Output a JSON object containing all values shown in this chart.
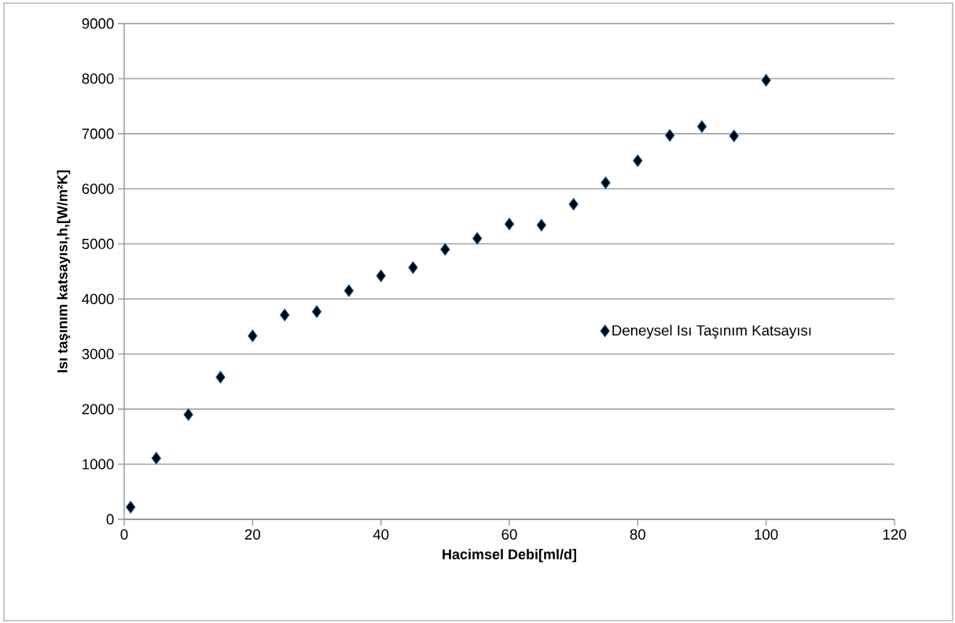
{
  "chart_data": {
    "type": "scatter",
    "xlabel": "Hacimsel Debi[ml/d]",
    "ylabel": "Isı taşınım katsayısı,h,[W/m²K]",
    "series": [
      {
        "name": "Deneysel Isı Taşınım Katsayısı",
        "color": "#000000",
        "x": [
          1,
          5,
          10,
          15,
          20,
          25,
          30,
          35,
          40,
          45,
          50,
          55,
          60,
          65,
          70,
          75,
          80,
          85,
          90,
          95,
          100
        ],
        "values": [
          220,
          1110,
          1900,
          2580,
          3330,
          3710,
          3770,
          4150,
          4420,
          4570,
          4900,
          5100,
          5360,
          5340,
          5720,
          6110,
          6510,
          6970,
          7130,
          6960,
          7970
        ]
      }
    ],
    "xlim": [
      0,
      120
    ],
    "xticks": [
      0,
      20,
      40,
      60,
      80,
      100,
      120
    ],
    "ylim": [
      0,
      9000
    ],
    "yticks": [
      0,
      1000,
      2000,
      3000,
      4000,
      5000,
      6000,
      7000,
      8000,
      9000
    ],
    "grid": "y",
    "legend": "right",
    "marker": "diamond"
  }
}
